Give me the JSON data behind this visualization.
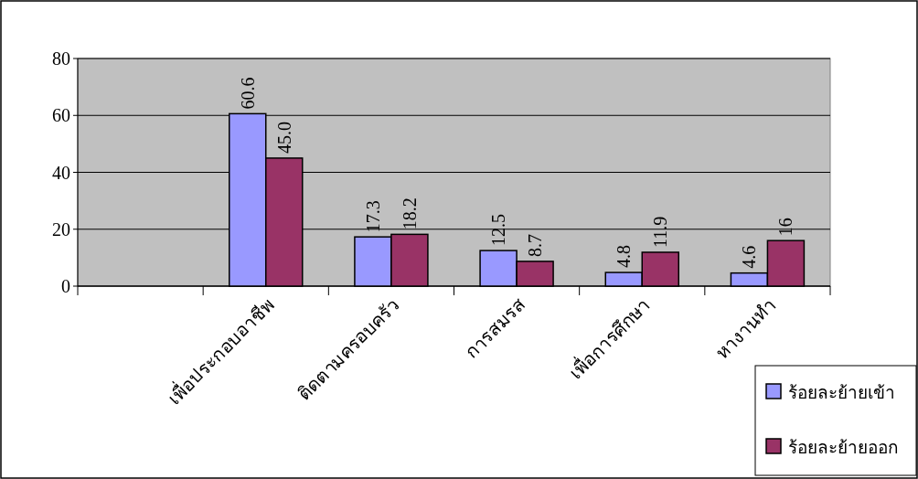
{
  "chart_data": {
    "type": "bar",
    "categories": [
      null,
      "เพื่อประกอบอาชีพ",
      "ติดตามครอบครัว",
      "การสมรส",
      "เพื่อการศึกษา",
      "หางานทำ"
    ],
    "series": [
      {
        "name": "ร้อยละย้ายเข้า",
        "color": "#9999ff",
        "values": [
          null,
          60.6,
          17.3,
          12.5,
          4.8,
          4.6
        ],
        "value_labels": [
          null,
          "60.6",
          "17.3",
          "12.5",
          "4.8",
          "4.6"
        ]
      },
      {
        "name": "ร้อยละย้ายออก",
        "color": "#993366",
        "values": [
          null,
          45.0,
          18.2,
          8.7,
          11.9,
          16
        ],
        "value_labels": [
          null,
          "45.0",
          "18.2",
          "8.7",
          "11.9",
          "16"
        ]
      }
    ],
    "ylim": [
      0,
      80
    ],
    "yticks": [
      0,
      20,
      40,
      60,
      80
    ],
    "grid": "y",
    "legend": "bottom right"
  }
}
